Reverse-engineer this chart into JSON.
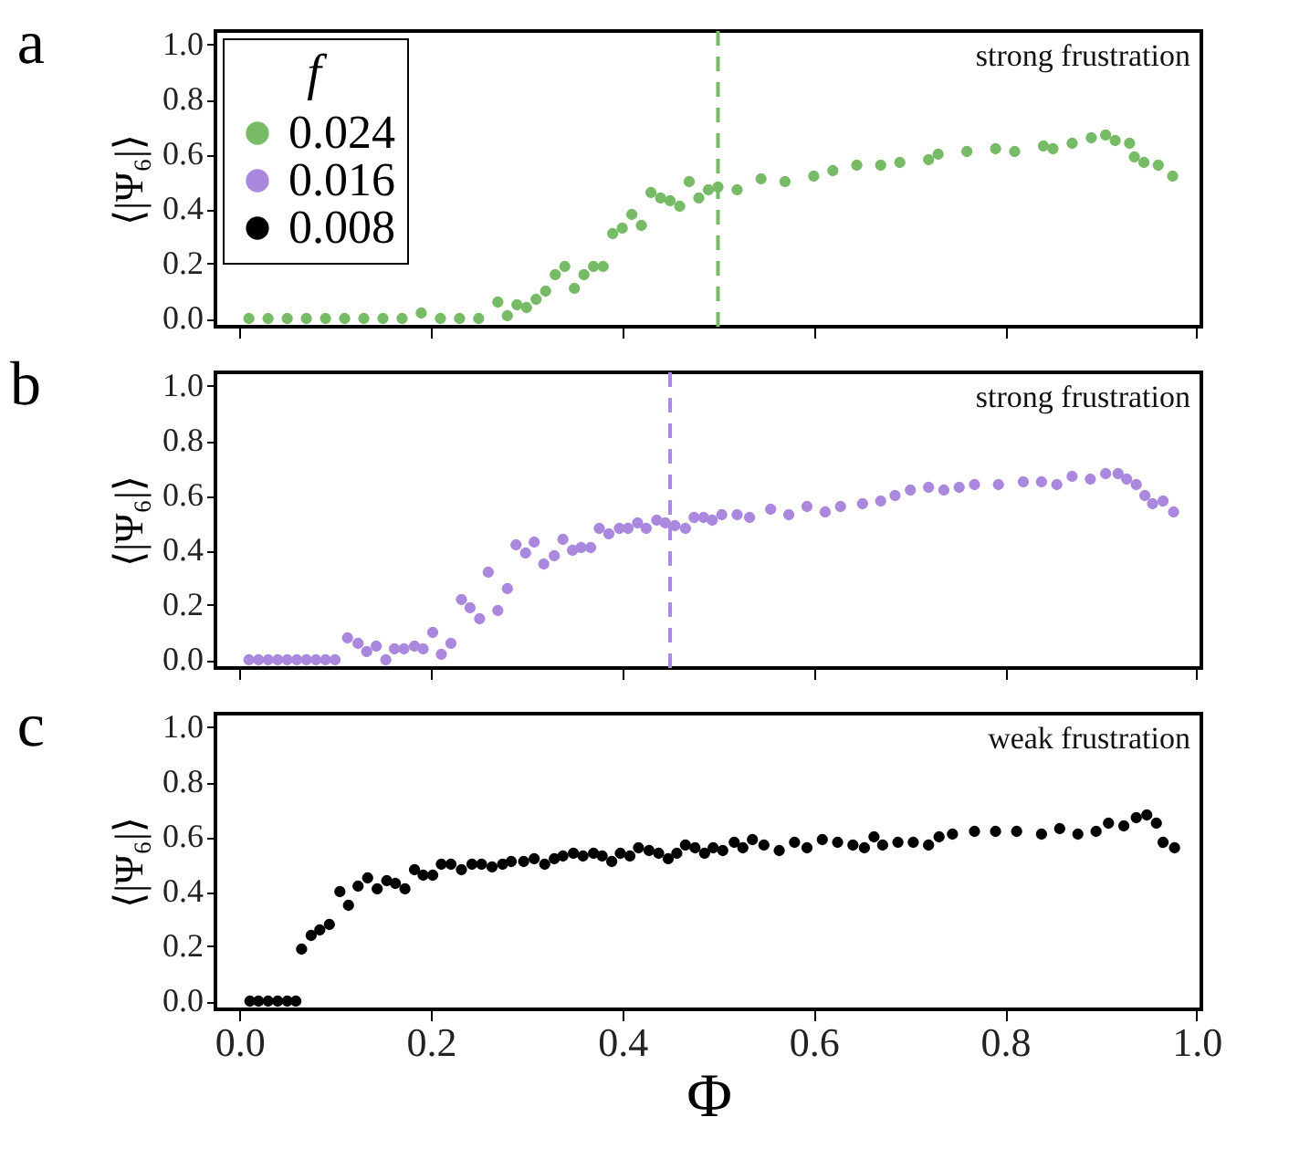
{
  "chart_data": [
    {
      "type": "scatter",
      "title": "a",
      "ylabel": "⟨|Ψ₆|⟩",
      "legend_title": "f",
      "legend": "top left",
      "marker": "circle",
      "tick_labels": "y",
      "annotations": [
        "strong frustration"
      ],
      "xlim": [
        -0.025,
        1.005
      ],
      "ylim": [
        -0.03,
        1.05
      ],
      "xticks": [
        0,
        0.2,
        0.4,
        0.6,
        0.8,
        1
      ],
      "yticks": [
        {
          "value": 0,
          "label": "0.0"
        },
        {
          "value": 0.2,
          "label": "0.2"
        },
        {
          "value": 0.4,
          "label": "0.4"
        },
        {
          "value": 0.6,
          "label": "0.6"
        },
        {
          "value": 0.8,
          "label": "0.8"
        },
        {
          "value": 1,
          "label": "1.0"
        }
      ],
      "ref_lines": [
        {
          "axis": "x",
          "value": 0.5,
          "color": "#77bb66",
          "line_style": "dashed"
        }
      ],
      "series": [
        {
          "name": "0.024",
          "color": "#77bb66",
          "x": [
            0.01,
            0.03,
            0.05,
            0.07,
            0.09,
            0.11,
            0.13,
            0.15,
            0.17,
            0.19,
            0.21,
            0.23,
            0.25,
            0.27,
            0.28,
            0.29,
            0.3,
            0.31,
            0.32,
            0.33,
            0.34,
            0.35,
            0.36,
            0.37,
            0.38,
            0.39,
            0.4,
            0.41,
            0.42,
            0.43,
            0.44,
            0.45,
            0.46,
            0.47,
            0.48,
            0.49,
            0.5,
            0.52,
            0.545,
            0.57,
            0.6,
            0.62,
            0.645,
            0.67,
            0.69,
            0.72,
            0.73,
            0.76,
            0.79,
            0.81,
            0.84,
            0.85,
            0.87,
            0.89,
            0.905,
            0.915,
            0.93,
            0.935,
            0.945,
            0.96,
            0.975
          ],
          "values": [
            0,
            0,
            0,
            0,
            0,
            0,
            0,
            0,
            0,
            0.02,
            0,
            0,
            0,
            0.06,
            0.01,
            0.05,
            0.04,
            0.07,
            0.1,
            0.16,
            0.19,
            0.11,
            0.16,
            0.19,
            0.19,
            0.31,
            0.33,
            0.38,
            0.34,
            0.46,
            0.44,
            0.43,
            0.41,
            0.5,
            0.44,
            0.47,
            0.48,
            0.47,
            0.51,
            0.5,
            0.52,
            0.54,
            0.56,
            0.56,
            0.57,
            0.58,
            0.6,
            0.61,
            0.62,
            0.61,
            0.63,
            0.62,
            0.64,
            0.66,
            0.67,
            0.65,
            0.64,
            0.59,
            0.57,
            0.56,
            0.52
          ]
        }
      ]
    },
    {
      "type": "scatter",
      "title": "b",
      "ylabel": "⟨|Ψ₆|⟩",
      "marker": "circle",
      "tick_labels": "y",
      "annotations": [
        "strong frustration"
      ],
      "xlim": [
        -0.025,
        1.005
      ],
      "ylim": [
        -0.03,
        1.05
      ],
      "xticks": [
        0,
        0.2,
        0.4,
        0.6,
        0.8,
        1
      ],
      "yticks": [
        {
          "value": 0,
          "label": "0.0"
        },
        {
          "value": 0.2,
          "label": "0.2"
        },
        {
          "value": 0.4,
          "label": "0.4"
        },
        {
          "value": 0.6,
          "label": "0.6"
        },
        {
          "value": 0.8,
          "label": "0.8"
        },
        {
          "value": 1,
          "label": "1.0"
        }
      ],
      "ref_lines": [
        {
          "axis": "x",
          "value": 0.45,
          "color": "#aa88dd",
          "line_style": "dashed"
        }
      ],
      "series": [
        {
          "name": "0.016",
          "color": "#aa88dd",
          "x": [
            0.01,
            0.02,
            0.03,
            0.04,
            0.05,
            0.06,
            0.07,
            0.08,
            0.09,
            0.1,
            0.113,
            0.124,
            0.133,
            0.143,
            0.153,
            0.162,
            0.172,
            0.183,
            0.192,
            0.202,
            0.211,
            0.221,
            0.232,
            0.241,
            0.251,
            0.26,
            0.27,
            0.28,
            0.289,
            0.299,
            0.308,
            0.318,
            0.329,
            0.338,
            0.348,
            0.357,
            0.367,
            0.376,
            0.386,
            0.397,
            0.406,
            0.416,
            0.425,
            0.436,
            0.445,
            0.455,
            0.466,
            0.475,
            0.485,
            0.494,
            0.504,
            0.52,
            0.533,
            0.555,
            0.574,
            0.593,
            0.612,
            0.628,
            0.651,
            0.67,
            0.685,
            0.701,
            0.72,
            0.736,
            0.752,
            0.768,
            0.793,
            0.819,
            0.838,
            0.854,
            0.87,
            0.889,
            0.905,
            0.918,
            0.927,
            0.937,
            0.946,
            0.954,
            0.965,
            0.976
          ],
          "values": [
            0,
            0,
            0,
            0,
            0,
            0,
            0,
            0,
            0,
            0,
            0.08,
            0.06,
            0.03,
            0.05,
            0,
            0.04,
            0.04,
            0.05,
            0.04,
            0.1,
            0.02,
            0.06,
            0.22,
            0.19,
            0.15,
            0.32,
            0.18,
            0.26,
            0.42,
            0.39,
            0.43,
            0.35,
            0.38,
            0.44,
            0.4,
            0.41,
            0.41,
            0.48,
            0.46,
            0.48,
            0.48,
            0.5,
            0.48,
            0.51,
            0.5,
            0.49,
            0.48,
            0.52,
            0.52,
            0.51,
            0.53,
            0.53,
            0.52,
            0.55,
            0.53,
            0.56,
            0.54,
            0.56,
            0.57,
            0.58,
            0.6,
            0.62,
            0.63,
            0.62,
            0.63,
            0.64,
            0.64,
            0.65,
            0.65,
            0.64,
            0.67,
            0.66,
            0.68,
            0.68,
            0.66,
            0.64,
            0.6,
            0.57,
            0.58,
            0.54
          ]
        }
      ]
    },
    {
      "type": "scatter",
      "title": "c",
      "xlabel": "Φ",
      "ylabel": "⟨|Ψ₆|⟩",
      "marker": "circle",
      "annotations": [
        "weak frustration"
      ],
      "xlim": [
        -0.025,
        1.005
      ],
      "ylim": [
        -0.03,
        1.05
      ],
      "xticks": [
        {
          "value": 0,
          "label": "0.0"
        },
        {
          "value": 0.2,
          "label": "0.2"
        },
        {
          "value": 0.4,
          "label": "0.4"
        },
        {
          "value": 0.6,
          "label": "0.6"
        },
        {
          "value": 0.8,
          "label": "0.8"
        },
        {
          "value": 1,
          "label": "1.0"
        }
      ],
      "yticks": [
        {
          "value": 0,
          "label": "0.0"
        },
        {
          "value": 0.2,
          "label": "0.2"
        },
        {
          "value": 0.4,
          "label": "0.4"
        },
        {
          "value": 0.6,
          "label": "0.6"
        },
        {
          "value": 0.8,
          "label": "0.8"
        },
        {
          "value": 1,
          "label": "1.0"
        }
      ],
      "series": [
        {
          "name": "0.008",
          "color": "#000000",
          "x": [
            0.011,
            0.02,
            0.03,
            0.04,
            0.05,
            0.059,
            0.065,
            0.075,
            0.084,
            0.094,
            0.105,
            0.114,
            0.124,
            0.134,
            0.144,
            0.154,
            0.163,
            0.173,
            0.183,
            0.192,
            0.202,
            0.211,
            0.221,
            0.232,
            0.243,
            0.253,
            0.264,
            0.275,
            0.284,
            0.297,
            0.308,
            0.319,
            0.329,
            0.338,
            0.349,
            0.359,
            0.37,
            0.379,
            0.389,
            0.398,
            0.408,
            0.417,
            0.428,
            0.438,
            0.448,
            0.457,
            0.466,
            0.476,
            0.486,
            0.495,
            0.505,
            0.517,
            0.526,
            0.536,
            0.548,
            0.564,
            0.58,
            0.593,
            0.609,
            0.625,
            0.641,
            0.653,
            0.663,
            0.672,
            0.688,
            0.704,
            0.72,
            0.731,
            0.745,
            0.768,
            0.79,
            0.812,
            0.838,
            0.857,
            0.876,
            0.895,
            0.908,
            0.924,
            0.937,
            0.948,
            0.958,
            0.965,
            0.977
          ],
          "values": [
            0,
            0,
            0,
            0,
            0,
            0,
            0.19,
            0.24,
            0.26,
            0.28,
            0.4,
            0.35,
            0.42,
            0.45,
            0.41,
            0.44,
            0.43,
            0.41,
            0.48,
            0.46,
            0.46,
            0.5,
            0.5,
            0.48,
            0.5,
            0.5,
            0.49,
            0.5,
            0.51,
            0.51,
            0.52,
            0.5,
            0.52,
            0.53,
            0.54,
            0.53,
            0.54,
            0.53,
            0.51,
            0.54,
            0.53,
            0.56,
            0.55,
            0.54,
            0.52,
            0.54,
            0.57,
            0.56,
            0.54,
            0.56,
            0.55,
            0.58,
            0.56,
            0.59,
            0.57,
            0.55,
            0.58,
            0.56,
            0.59,
            0.58,
            0.57,
            0.56,
            0.6,
            0.57,
            0.58,
            0.58,
            0.57,
            0.6,
            0.61,
            0.62,
            0.62,
            0.62,
            0.61,
            0.63,
            0.61,
            0.62,
            0.65,
            0.64,
            0.67,
            0.68,
            0.65,
            0.58,
            0.56
          ]
        }
      ]
    }
  ]
}
